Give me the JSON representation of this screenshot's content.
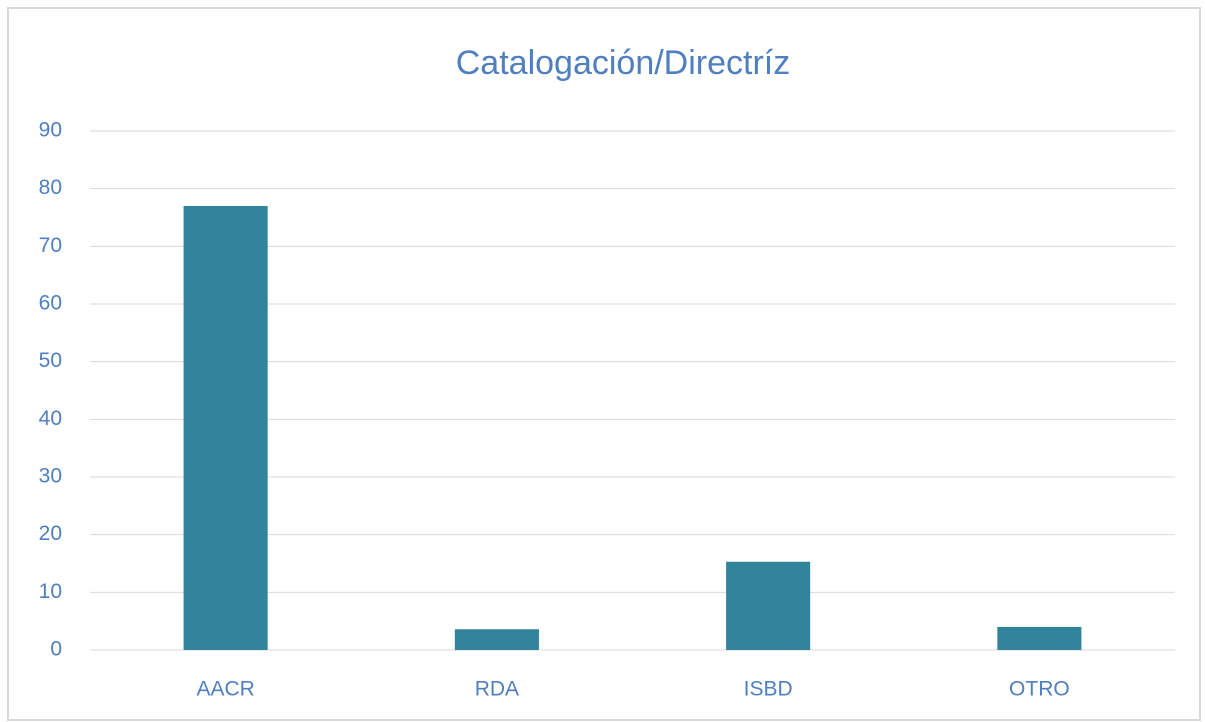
{
  "chart_data": {
    "type": "bar",
    "title": "Catalogación/Directríz",
    "categories": [
      "AACR",
      "RDA",
      "ISBD",
      "OTRO"
    ],
    "values": [
      77,
      3.6,
      15.3,
      4.0
    ],
    "color": "#31849b",
    "ylim": [
      0,
      90
    ],
    "yticks": [
      0,
      10,
      20,
      30,
      40,
      50,
      60,
      70,
      80,
      90
    ],
    "grid": true
  }
}
